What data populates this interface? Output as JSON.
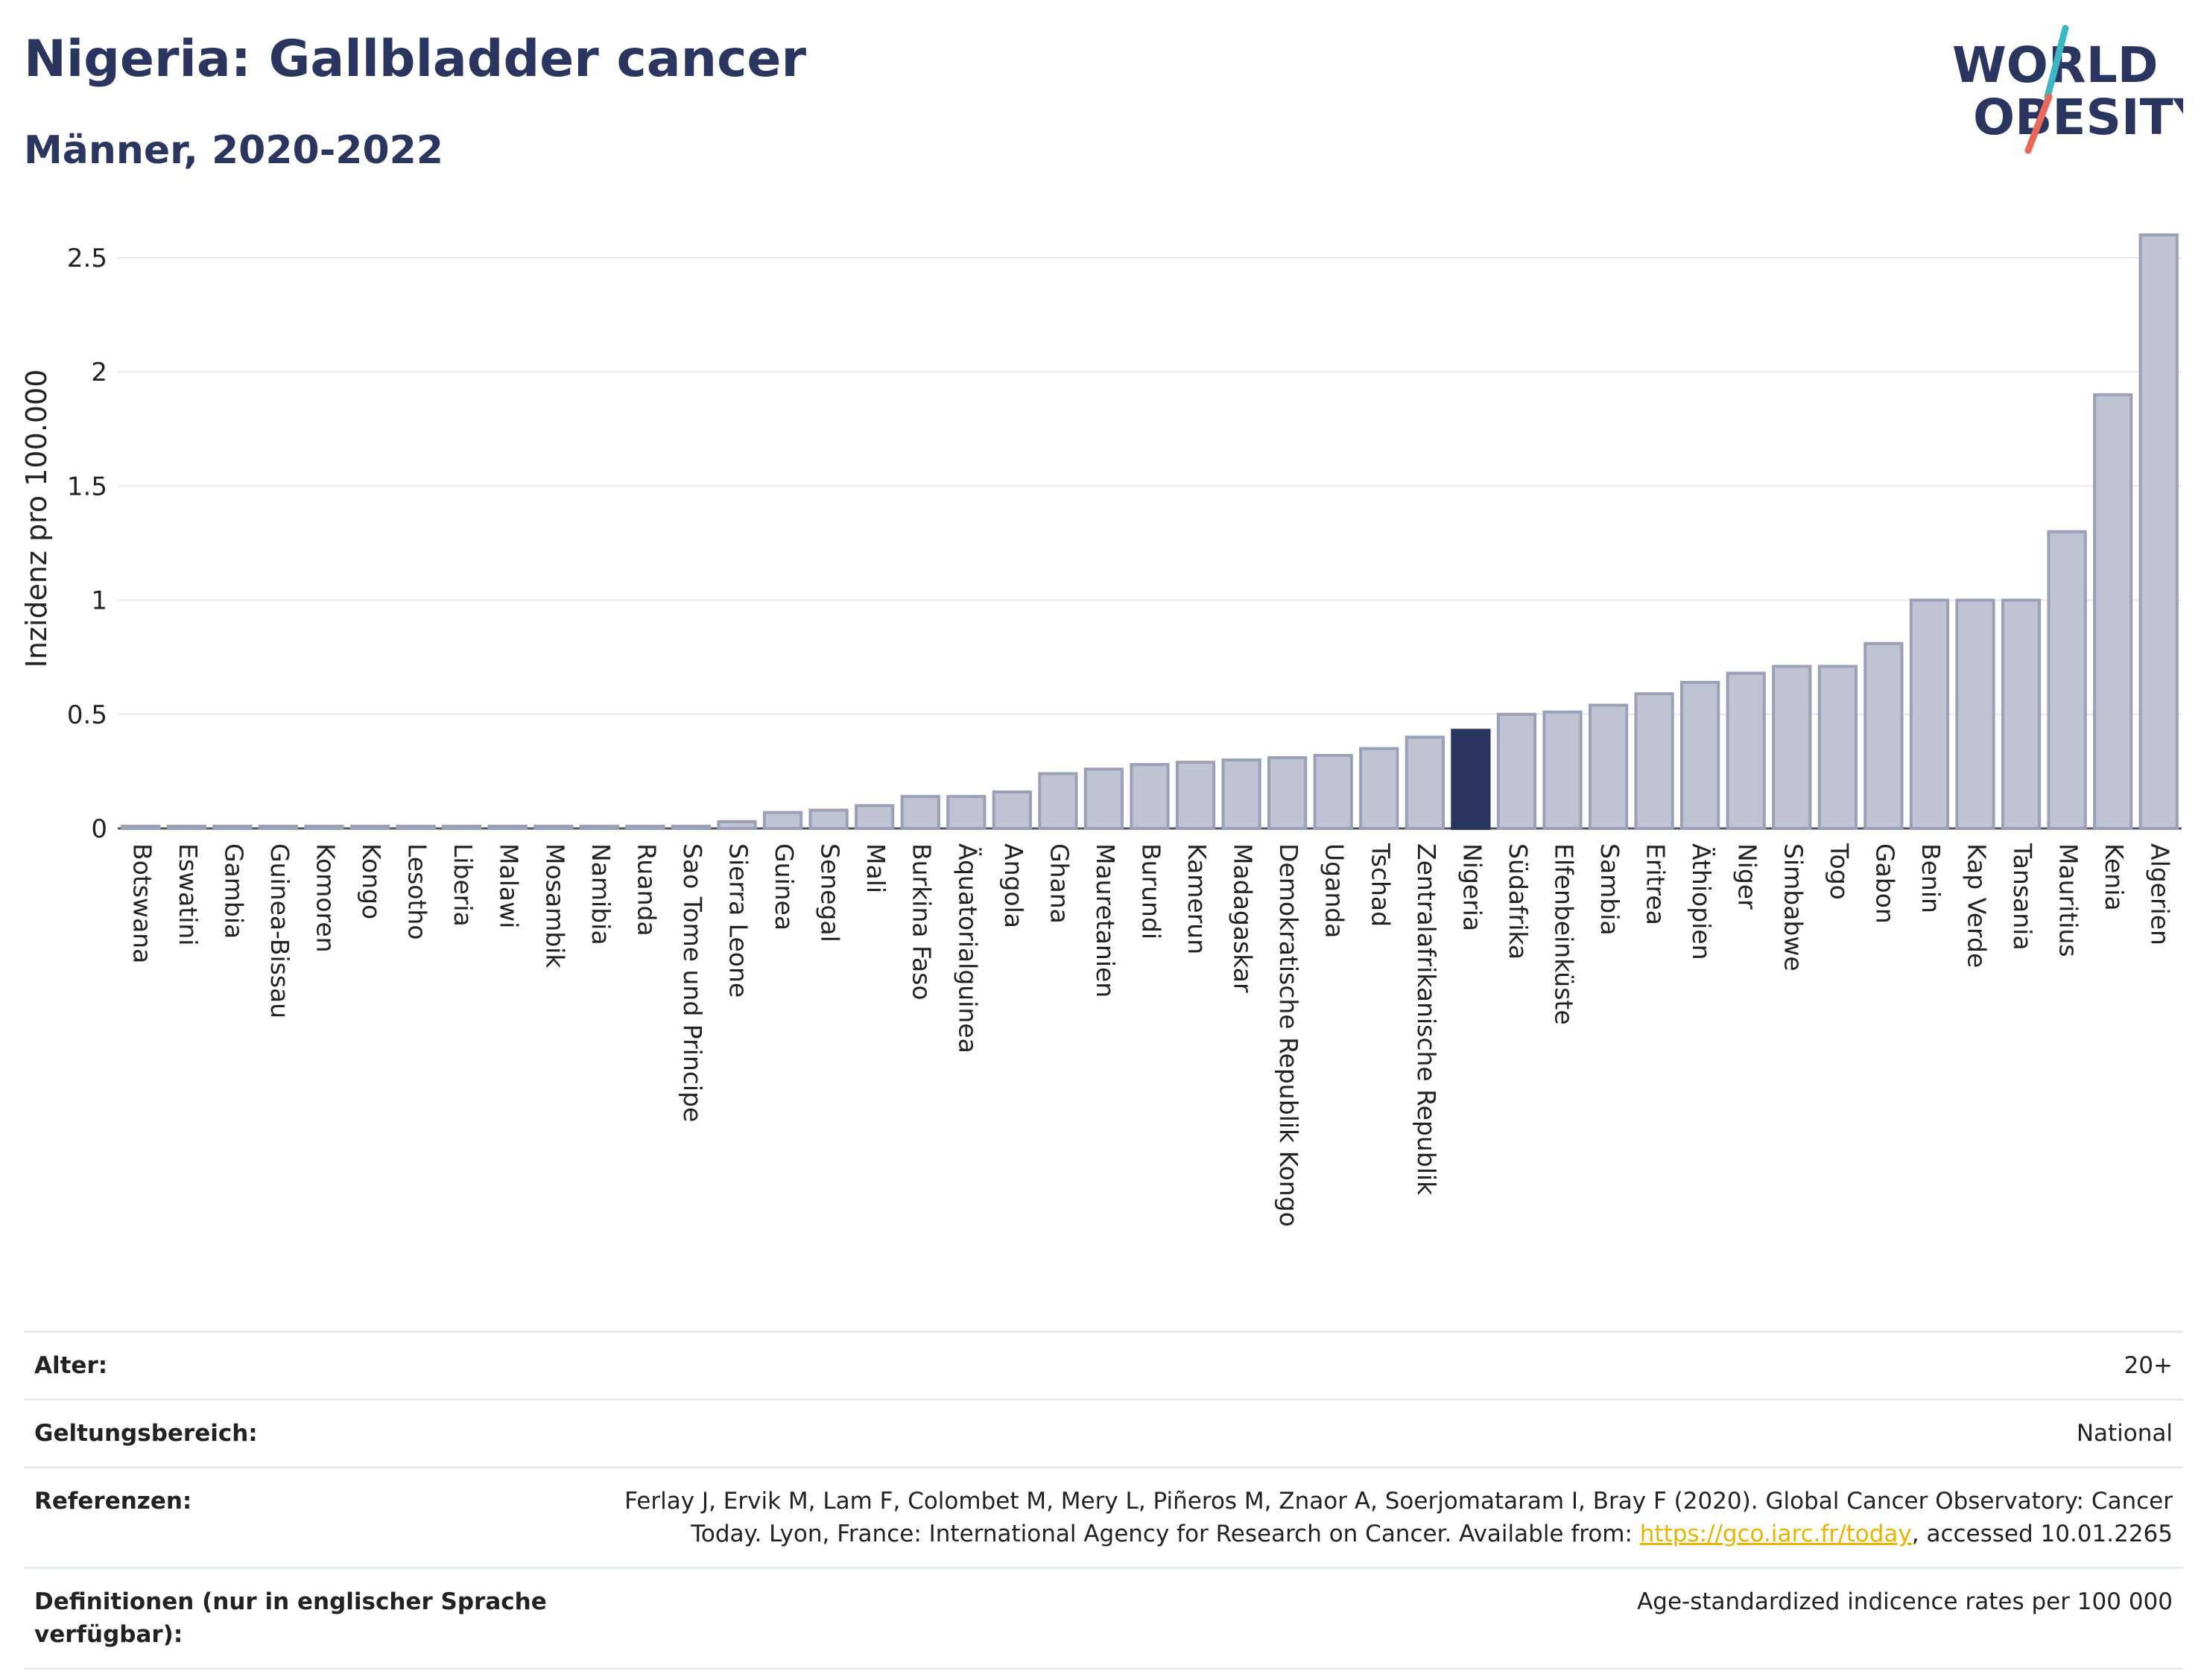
{
  "header": {
    "title": "Nigeria: Gallbladder cancer",
    "subtitle": "Männer, 2020-2022",
    "logo_line1": "WORLD",
    "logo_line2": "OBESITY"
  },
  "colors": {
    "bar_fill": "#c0c4d2",
    "bar_stroke": "#9aa0b8",
    "highlight": "#2a3560",
    "grid": "#e4e8ef",
    "logo_text": "#2a3560",
    "logo_teal": "#3bb8c4",
    "logo_red": "#e8685a"
  },
  "chart_data": {
    "type": "bar",
    "title": "Nigeria: Gallbladder cancer",
    "subtitle": "Männer, 2020-2022",
    "ylabel": "Inzidenz pro 100.000",
    "xlabel": "",
    "ylim": [
      0,
      2.65
    ],
    "yticks": [
      0,
      0.5,
      1,
      1.5,
      2,
      2.5
    ],
    "ytick_labels": [
      "0",
      "0.5",
      "1",
      "1.5",
      "2",
      "2.5"
    ],
    "grid": true,
    "highlight": "Nigeria",
    "categories": [
      "Botswana",
      "Eswatini",
      "Gambia",
      "Guinea-Bissau",
      "Komoren",
      "Kongo",
      "Lesotho",
      "Liberia",
      "Malawi",
      "Mosambik",
      "Namibia",
      "Ruanda",
      "Sao Tome und Principe",
      "Sierra Leone",
      "Guinea",
      "Senegal",
      "Mali",
      "Burkina Faso",
      "Äquatorialguinea",
      "Angola",
      "Ghana",
      "Mauretanien",
      "Burundi",
      "Kamerun",
      "Madagaskar",
      "Demokratische Republik Kongo",
      "Uganda",
      "Tschad",
      "Zentralafrikanische Republik",
      "Nigeria",
      "Südafrika",
      "Elfenbeinküste",
      "Sambia",
      "Eritrea",
      "Äthiopien",
      "Niger",
      "Simbabwe",
      "Togo",
      "Gabon",
      "Benin",
      "Kap Verde",
      "Tansania",
      "Mauritius",
      "Kenia",
      "Algerien"
    ],
    "values": [
      0.01,
      0.01,
      0.01,
      0.01,
      0.01,
      0.01,
      0.01,
      0.01,
      0.01,
      0.01,
      0.01,
      0.01,
      0.01,
      0.03,
      0.07,
      0.08,
      0.1,
      0.14,
      0.14,
      0.16,
      0.24,
      0.26,
      0.28,
      0.29,
      0.3,
      0.31,
      0.32,
      0.35,
      0.4,
      0.43,
      0.5,
      0.51,
      0.54,
      0.59,
      0.64,
      0.68,
      0.71,
      0.71,
      0.81,
      1.0,
      1.0,
      1.0,
      1.3,
      1.9,
      2.6
    ]
  },
  "meta": {
    "age_label": "Alter:",
    "age_value": "20+",
    "scope_label": "Geltungsbereich:",
    "scope_value": "National",
    "ref_label": "Referenzen:",
    "ref_text_1": "Ferlay J, Ervik M, Lam F, Colombet M, Mery L, Piñeros M, Znaor A, Soerjomataram I, Bray F (2020). Global Cancer Observatory: Cancer Today. Lyon, France: International Agency for Research on Cancer. Available from: ",
    "ref_link": "https://gco.iarc.fr/today",
    "ref_text_2": ", accessed 10.01.2265",
    "def_label": "Definitionen (nur in englischer Sprache verfügbar):",
    "def_value": "Age-standardized indicence rates per 100 000"
  }
}
